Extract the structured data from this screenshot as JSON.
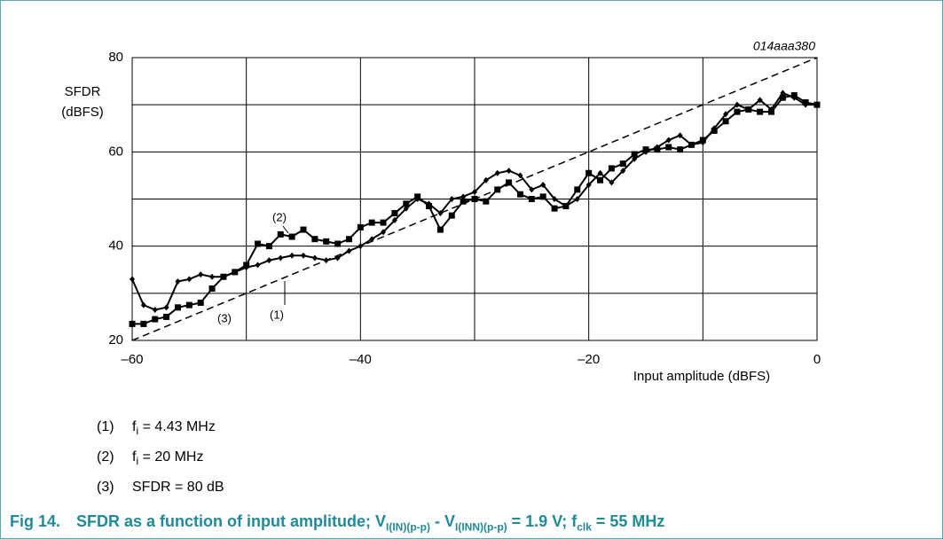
{
  "chart_data": {
    "type": "line",
    "annotation": "014aaa380",
    "ylabel": [
      "SFDR",
      "(dBFS)"
    ],
    "xlabel": "Input amplitude (dBFS)",
    "xlim": [
      -60,
      0
    ],
    "xticks": [
      {
        "value": -60,
        "label": "–60"
      },
      {
        "value": -40,
        "label": "–40"
      },
      {
        "value": -20,
        "label": "–20"
      },
      0
    ],
    "xminor_ticks": [
      -50,
      -30,
      -10
    ],
    "ylim": [
      20,
      80
    ],
    "yticks": [
      20,
      40,
      60,
      80
    ],
    "yminor_ticks": [
      30,
      50,
      70
    ],
    "grid": true,
    "series": [
      {
        "label": "(1)",
        "color": "#000000",
        "marker": "diamond",
        "dashed": false,
        "x": [
          -60,
          -59,
          -58,
          -57,
          -56,
          -55,
          -54,
          -53,
          -52,
          -51,
          -50,
          -49,
          -48,
          -47,
          -46,
          -45,
          -44,
          -43,
          -42,
          -41,
          -40,
          -39,
          -38,
          -37,
          -36,
          -35,
          -34,
          -33,
          -32,
          -31,
          -30,
          -29,
          -28,
          -27,
          -26,
          -25,
          -24,
          -23,
          -22,
          -21,
          -20,
          -19,
          -18,
          -17,
          -16,
          -15,
          -14,
          -13,
          -12,
          -11,
          -10,
          -9,
          -8,
          -7,
          -6,
          -5,
          -4,
          -3,
          -2,
          -1,
          0
        ],
        "values": [
          33,
          27.5,
          26.5,
          27,
          32.5,
          33,
          34,
          33.5,
          33.5,
          34.5,
          35.5,
          36,
          37,
          37.5,
          38,
          38,
          37.5,
          37,
          37.5,
          39,
          40,
          41.5,
          43,
          45.5,
          48,
          50,
          49,
          47,
          50,
          50.5,
          51.5,
          54,
          55.5,
          56,
          55,
          52,
          53,
          50,
          48.5,
          50,
          53,
          55.5,
          53.5,
          56,
          58.5,
          60,
          61,
          62.5,
          63.5,
          61.5,
          62,
          65,
          68,
          70,
          69,
          71,
          69,
          72.5,
          71.5,
          70,
          70
        ]
      },
      {
        "label": "(2)",
        "color": "#000000",
        "marker": "square",
        "dashed": false,
        "x": [
          -60,
          -59,
          -58,
          -57,
          -56,
          -55,
          -54,
          -53,
          -52,
          -51,
          -50,
          -49,
          -48,
          -47,
          -46,
          -45,
          -44,
          -43,
          -42,
          -41,
          -40,
          -39,
          -38,
          -37,
          -36,
          -35,
          -34,
          -33,
          -32,
          -31,
          -30,
          -29,
          -28,
          -27,
          -26,
          -25,
          -24,
          -23,
          -22,
          -21,
          -20,
          -19,
          -18,
          -17,
          -16,
          -15,
          -14,
          -13,
          -12,
          -11,
          -10,
          -9,
          -8,
          -7,
          -6,
          -5,
          -4,
          -3,
          -2,
          -1,
          0
        ],
        "values": [
          23.5,
          23.5,
          24.5,
          25,
          27,
          27.5,
          28,
          31,
          33.5,
          34.5,
          36,
          40.5,
          40,
          42.5,
          42,
          43.5,
          41.5,
          41,
          40.5,
          41.5,
          44,
          45,
          45,
          47,
          49,
          50.5,
          48.5,
          43.5,
          46.5,
          49.5,
          50,
          49.5,
          52,
          53.5,
          51,
          50,
          50.5,
          48,
          48.5,
          52,
          55.5,
          54,
          56.5,
          57.5,
          59.5,
          60.5,
          60.5,
          61,
          60.5,
          61.5,
          62.5,
          64.5,
          66.5,
          68.5,
          69,
          68.5,
          68.5,
          71.5,
          72,
          70.5,
          70
        ]
      },
      {
        "label": "(3)",
        "color": "#000000",
        "marker": null,
        "dashed": true,
        "x": [
          -60,
          0
        ],
        "values": [
          20,
          80
        ]
      }
    ],
    "legend": [
      {
        "number": "(1)",
        "symbol": "f",
        "sub": "i",
        "text": " = 4.43 MHz"
      },
      {
        "number": "(2)",
        "symbol": "f",
        "sub": "i",
        "text": " = 20 MHz"
      },
      {
        "number": "(3)",
        "text": "SFDR = 80 dB"
      }
    ],
    "caption": {
      "label": "Fig 14.",
      "parts": [
        {
          "text": "SFDR as a function of input amplitude; V"
        },
        {
          "sub": "I(IN)(p-p)"
        },
        {
          "text": " - V"
        },
        {
          "sub": "I(INN)(p-p)"
        },
        {
          "text": " = 1.9 V; f"
        },
        {
          "sub": "clk"
        },
        {
          "text": " = 55 MHz"
        }
      ]
    }
  }
}
